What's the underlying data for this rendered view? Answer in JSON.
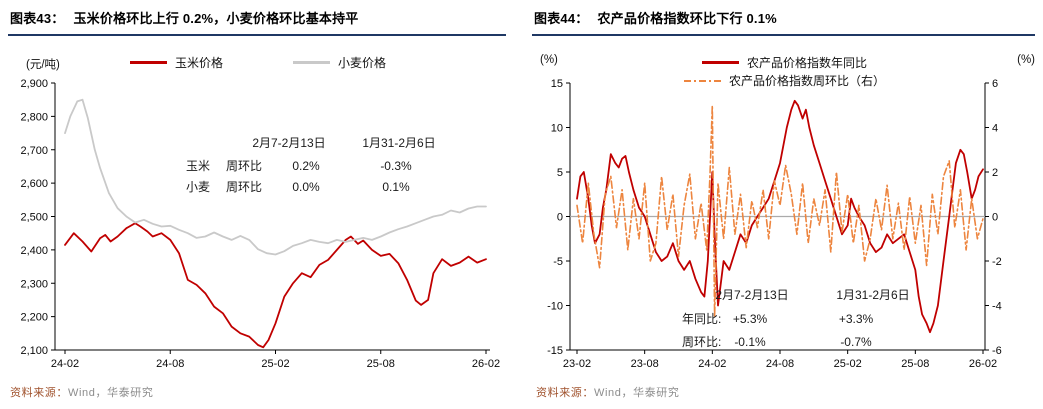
{
  "theme": {
    "red": "#C00000",
    "gray": "#C9C9C9",
    "orange": "#ED853F",
    "navy": "#1F3864",
    "src": "#A0522D"
  },
  "panels": {
    "left": {
      "title_prefix": "图表43：",
      "title": "玉米价格环比上行 0.2%，小麦价格环比基本持平",
      "unit": "(元/吨)",
      "legend": [
        {
          "label": "玉米价格"
        },
        {
          "label": "小麦价格"
        }
      ],
      "table": {
        "col1": "2月7-2月13日",
        "col2": "1月31-2月6日",
        "rows": [
          {
            "name": "玉米",
            "metric": "周环比",
            "v1": "0.2%",
            "v2": "-0.3%"
          },
          {
            "name": "小麦",
            "metric": "周环比",
            "v1": "0.0%",
            "v2": "0.1%"
          }
        ]
      },
      "source_label": "资料来源：",
      "source_text": "Wind，华泰研究"
    },
    "right": {
      "title_prefix": "图表44：",
      "title": "农产品价格指数环比下行 0.1%",
      "unit_left": "(%)",
      "unit_right": "(%)",
      "legend": [
        {
          "label": "农产品价格指数年同比"
        },
        {
          "label": "农产品价格指数周环比（右）"
        }
      ],
      "table": {
        "col1": "2月7-2月13日",
        "col2": "1月31-2月6日",
        "rows": [
          {
            "name": "年同比:",
            "v1": "+5.3%",
            "v2": "+3.3%"
          },
          {
            "name": "周环比:",
            "v1": "-0.1%",
            "v2": "-0.7%"
          }
        ]
      },
      "source_label": "资料来源：",
      "source_text": "Wind，华泰研究"
    }
  },
  "chart_data": [
    {
      "type": "line",
      "title": "玉米价格环比上行 0.2%，小麦价格环比基本持平",
      "xlabel": "",
      "ylabel": "元/吨",
      "ylim": [
        2100,
        2900
      ],
      "xlim": [
        0,
        24
      ],
      "grid": false,
      "legend_position": "top",
      "y_ticks": [
        "2,900",
        "2,800",
        "2,700",
        "2,600",
        "2,500",
        "2,400",
        "2,300",
        "2,200",
        "2,100"
      ],
      "x_ticks": [
        "24-02",
        "24-08",
        "25-02",
        "25-08",
        "26-02"
      ],
      "series": [
        {
          "name": "玉米价格",
          "color": "#C00000",
          "style": "solid",
          "x": [
            0,
            0.5,
            1,
            1.5,
            2,
            2.3,
            2.6,
            3,
            3.5,
            4,
            4.3,
            4.7,
            5,
            5.5,
            6,
            6.5,
            7,
            7.5,
            8,
            8.5,
            9,
            9.5,
            10,
            10.5,
            11,
            11.3,
            11.6,
            12,
            12.5,
            13,
            13.5,
            14,
            14.5,
            15,
            15.5,
            16,
            16.3,
            16.7,
            17,
            17.5,
            18,
            18.5,
            19,
            19.5,
            20,
            20.3,
            20.7,
            21,
            21.5,
            22,
            22.5,
            23,
            23.5,
            24
          ],
          "y": [
            2415,
            2450,
            2425,
            2395,
            2435,
            2445,
            2425,
            2440,
            2465,
            2480,
            2470,
            2455,
            2440,
            2450,
            2430,
            2390,
            2310,
            2295,
            2270,
            2230,
            2210,
            2170,
            2150,
            2140,
            2115,
            2108,
            2130,
            2180,
            2260,
            2300,
            2330,
            2318,
            2355,
            2370,
            2400,
            2430,
            2440,
            2418,
            2428,
            2400,
            2382,
            2388,
            2360,
            2310,
            2248,
            2235,
            2250,
            2330,
            2372,
            2352,
            2362,
            2380,
            2362,
            2372
          ]
        },
        {
          "name": "小麦价格",
          "color": "#C9C9C9",
          "style": "solid",
          "x": [
            0,
            0.3,
            0.7,
            1,
            1.3,
            1.7,
            2,
            2.5,
            3,
            3.5,
            4,
            4.5,
            5,
            5.5,
            6,
            6.5,
            7,
            7.5,
            8,
            8.5,
            9,
            9.5,
            10,
            10.5,
            11,
            11.5,
            12,
            12.5,
            13,
            13.5,
            14,
            14.5,
            15,
            15.5,
            16,
            16.5,
            17,
            17.5,
            18,
            18.5,
            19,
            19.5,
            20,
            20.5,
            21,
            21.5,
            22,
            22.5,
            23,
            23.5,
            24
          ],
          "y": [
            2750,
            2800,
            2845,
            2850,
            2795,
            2700,
            2645,
            2570,
            2525,
            2500,
            2482,
            2490,
            2478,
            2470,
            2472,
            2460,
            2450,
            2436,
            2440,
            2452,
            2440,
            2430,
            2442,
            2430,
            2402,
            2390,
            2386,
            2396,
            2412,
            2420,
            2430,
            2424,
            2420,
            2430,
            2424,
            2430,
            2436,
            2430,
            2440,
            2452,
            2462,
            2470,
            2480,
            2490,
            2500,
            2505,
            2518,
            2512,
            2524,
            2530,
            2530
          ]
        }
      ]
    },
    {
      "type": "line",
      "title": "农产品价格指数环比下行 0.1%",
      "xlabel": "",
      "ylabel_left": "%",
      "ylabel_right": "%",
      "ylim_left": [
        -15,
        15
      ],
      "ylim_right": [
        -6,
        6
      ],
      "xlim": [
        0,
        36
      ],
      "grid": false,
      "zero_line": true,
      "legend_position": "top",
      "y_ticks_left": [
        "15",
        "10",
        "5",
        "0",
        "-5",
        "-10",
        "-15"
      ],
      "y_ticks_right": [
        "6",
        "4",
        "2",
        "0",
        "-2",
        "-4",
        "-6"
      ],
      "x_ticks": [
        "23-02",
        "23-08",
        "24-02",
        "24-08",
        "25-02",
        "25-08",
        "26-02"
      ],
      "series": [
        {
          "name": "农产品价格指数年同比",
          "axis": "left",
          "color": "#C00000",
          "style": "solid",
          "x": [
            0,
            0.3,
            0.6,
            1,
            1.3,
            1.6,
            2,
            2.3,
            2.6,
            3,
            3.4,
            3.7,
            4,
            4.3,
            4.6,
            5,
            5.5,
            6,
            6.5,
            7,
            7.5,
            8,
            8.5,
            9,
            9.5,
            10,
            10.5,
            11,
            11.3,
            11.6,
            12,
            12.2,
            12.5,
            12.8,
            13,
            13.5,
            14,
            14.5,
            15,
            15.5,
            16,
            16.5,
            17,
            17.5,
            18,
            18.3,
            18.6,
            19,
            19.3,
            19.6,
            20,
            20.3,
            20.6,
            21,
            21.5,
            22,
            22.5,
            23,
            23.5,
            24,
            24.3,
            24.6,
            25,
            25.5,
            26,
            26.5,
            27,
            27.5,
            28,
            28.5,
            29,
            29.5,
            30,
            30.3,
            30.6,
            31,
            31.3,
            31.6,
            32,
            32.5,
            33,
            33.3,
            33.6,
            34,
            34.3,
            34.6,
            35,
            35.3,
            35.6,
            36
          ],
          "y": [
            2,
            4.5,
            5,
            2,
            -1,
            -3,
            -2,
            1,
            3,
            7,
            6,
            5.5,
            6.5,
            6.8,
            5,
            3,
            1,
            0,
            -2,
            -4,
            -5,
            -4.5,
            -3,
            -5,
            -6,
            -5,
            -7,
            -8.5,
            -9,
            -5,
            5,
            -2,
            -10,
            -7,
            -5,
            -6,
            -4,
            -2,
            -3,
            -1,
            0,
            1,
            2,
            4,
            6,
            8,
            10,
            12,
            13,
            12.5,
            11,
            12,
            10,
            8,
            6,
            4,
            2,
            0,
            -2,
            -1,
            2,
            1,
            0,
            -1,
            -3,
            -4,
            -3.5,
            -2,
            -3,
            -2.5,
            -2,
            -4,
            -6,
            -9,
            -11,
            -12,
            -13,
            -12,
            -10,
            -5,
            0,
            3,
            6,
            7.5,
            7,
            5,
            2,
            3,
            4.5,
            5.3
          ]
        },
        {
          "name": "农产品价格指数周环比（右）",
          "axis": "right",
          "color": "#ED853F",
          "style": "dashdot",
          "x": [
            0,
            0.5,
            1,
            1.5,
            2,
            2.5,
            3,
            3.5,
            4,
            4.5,
            5,
            5.5,
            6,
            6.5,
            7,
            7.5,
            8,
            8.5,
            9,
            9.5,
            10,
            10.5,
            11,
            11.5,
            11.8,
            12,
            12.2,
            12.5,
            13,
            13.5,
            14,
            14.5,
            15,
            15.5,
            16,
            16.5,
            17,
            17.5,
            18,
            18.5,
            19,
            19.5,
            20,
            20.5,
            21,
            21.5,
            22,
            22.5,
            23,
            23.5,
            24,
            24.5,
            25,
            25.5,
            26,
            26.5,
            27,
            27.5,
            28,
            28.5,
            29,
            29.5,
            30,
            30.5,
            31,
            31.5,
            32,
            32.5,
            33,
            33.5,
            34,
            34.5,
            35,
            35.5,
            36
          ],
          "y": [
            0.5,
            -1.2,
            1.5,
            -0.8,
            -2.3,
            1.0,
            1.8,
            -0.5,
            1.2,
            -1.5,
            0.8,
            -1.0,
            1.5,
            -2.0,
            -1.2,
            1.8,
            -0.6,
            1.0,
            -1.8,
            0.5,
            1.9,
            -1.0,
            0.6,
            -1.5,
            2.0,
            5.0,
            -4.5,
            1.5,
            -1.0,
            2.2,
            -0.8,
            1.0,
            -1.4,
            0.7,
            -0.5,
            1.2,
            -1.0,
            1.6,
            0.5,
            2.3,
            1.0,
            -0.8,
            1.5,
            -1.2,
            0.8,
            -0.4,
            1.2,
            -1.6,
            2.0,
            -0.7,
            1.0,
            -1.2,
            0.5,
            -2.0,
            -1.0,
            0.8,
            -0.6,
            1.4,
            -1.0,
            0.6,
            -1.5,
            0.9,
            -1.2,
            0.5,
            -2.2,
            1.0,
            -0.8,
            1.8,
            2.5,
            -0.5,
            1.2,
            -1.5,
            0.8,
            -1.0,
            -0.1
          ]
        }
      ]
    }
  ]
}
